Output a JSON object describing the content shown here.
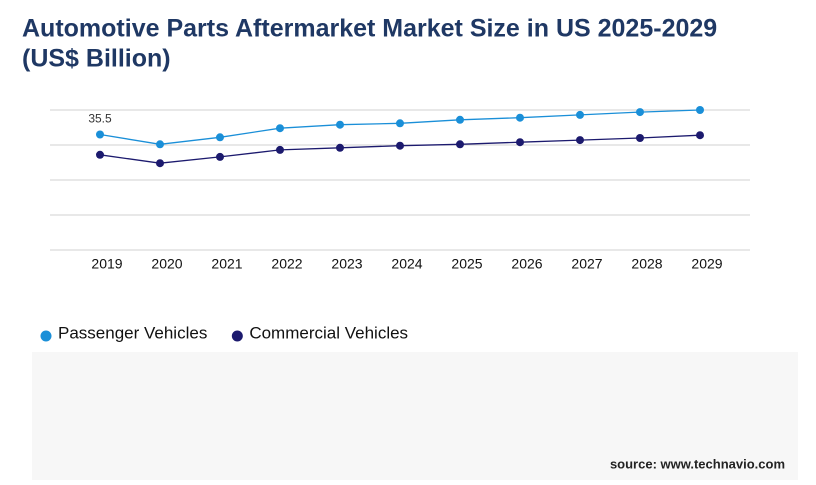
{
  "chart_data": {
    "type": "line",
    "title": "Automotive Parts Aftermarket Market Size in US 2025-2029 (US$ Billion)",
    "categories": [
      "2019",
      "2020",
      "2021",
      "2022",
      "2023",
      "2024",
      "2025",
      "2026",
      "2027",
      "2028",
      "2029"
    ],
    "series": [
      {
        "name": "Passenger Vehicles",
        "color": "#1a8fd8",
        "values": [
          35.5,
          34.1,
          35.1,
          36.4,
          36.9,
          37.1,
          37.6,
          37.9,
          38.3,
          38.7,
          39.0
        ],
        "value_labels": [
          "35.5",
          null,
          null,
          null,
          null,
          null,
          null,
          null,
          null,
          null,
          null
        ]
      },
      {
        "name": "Commercial Vehicles",
        "color": "#1c1a6e",
        "values": [
          32.6,
          31.4,
          32.3,
          33.3,
          33.6,
          33.9,
          34.1,
          34.4,
          34.7,
          35.0,
          35.4
        ]
      }
    ],
    "ylim": [
      19,
      39
    ],
    "source": "source: www.technavio.com"
  }
}
